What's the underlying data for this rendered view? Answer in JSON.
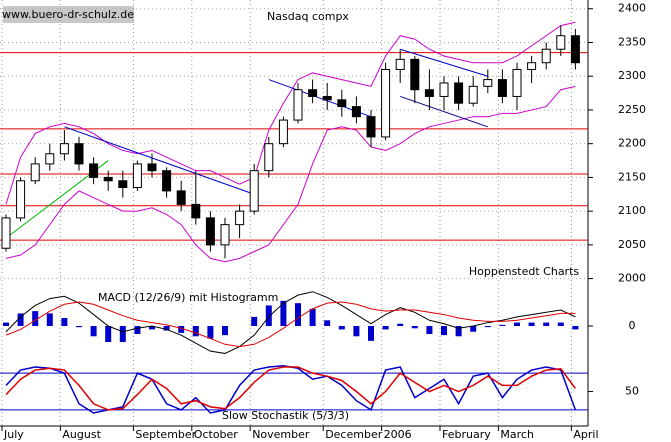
{
  "chart_data": [
    {
      "type": "candlestick",
      "title": "Nasdaq compx",
      "annotations": [
        "www.buero-dr-schulz.de",
        "Hoppenstedt Charts"
      ],
      "categories": [
        "July",
        null,
        null,
        null,
        "August",
        null,
        null,
        null,
        null,
        "September",
        null,
        null,
        null,
        "October",
        null,
        null,
        null,
        "November",
        null,
        null,
        null,
        null,
        "December",
        null,
        null,
        null,
        "2006",
        null,
        null,
        null,
        "February",
        null,
        null,
        null,
        "March",
        null,
        null,
        null,
        null,
        "April"
      ],
      "open": [
        2045,
        2090,
        2145,
        2170,
        2185,
        2200,
        2170,
        2150,
        2145,
        2135,
        2170,
        2160,
        2130,
        2110,
        2090,
        2050,
        2080,
        2100,
        2160,
        2200,
        2235,
        2280,
        2270,
        2265,
        2255,
        2240,
        2210,
        2310,
        2325,
        2280,
        2270,
        2290,
        2260,
        2285,
        2295,
        2270,
        2310,
        2320,
        2340,
        2360
      ],
      "high": [
        2095,
        2150,
        2180,
        2200,
        2220,
        2210,
        2180,
        2160,
        2160,
        2175,
        2185,
        2165,
        2145,
        2160,
        2100,
        2090,
        2110,
        2170,
        2210,
        2240,
        2290,
        2295,
        2290,
        2280,
        2270,
        2250,
        2320,
        2340,
        2330,
        2310,
        2300,
        2300,
        2300,
        2310,
        2310,
        2320,
        2330,
        2350,
        2375,
        2370
      ],
      "low": [
        2040,
        2085,
        2140,
        2160,
        2175,
        2160,
        2140,
        2130,
        2120,
        2130,
        2150,
        2120,
        2100,
        2080,
        2040,
        2030,
        2060,
        2095,
        2150,
        2195,
        2230,
        2260,
        2250,
        2240,
        2230,
        2195,
        2205,
        2290,
        2260,
        2250,
        2250,
        2250,
        2255,
        2275,
        2260,
        2250,
        2290,
        2310,
        2330,
        2310
      ],
      "close": [
        2090,
        2145,
        2170,
        2185,
        2200,
        2170,
        2150,
        2145,
        2135,
        2170,
        2160,
        2130,
        2110,
        2090,
        2050,
        2080,
        2100,
        2160,
        2200,
        2235,
        2280,
        2270,
        2265,
        2255,
        2240,
        2210,
        2310,
        2325,
        2280,
        2270,
        2290,
        2260,
        2285,
        2295,
        2270,
        2310,
        2320,
        2340,
        2360,
        2320
      ],
      "up_color": "#ffffff",
      "down_color": "#000000",
      "bollinger_upper": [
        2110,
        2180,
        2215,
        2225,
        2230,
        2225,
        2215,
        2200,
        2190,
        2185,
        2190,
        2180,
        2170,
        2160,
        2160,
        2150,
        2140,
        2150,
        2220,
        2260,
        2295,
        2305,
        2300,
        2295,
        2290,
        2285,
        2330,
        2360,
        2355,
        2340,
        2330,
        2325,
        2320,
        2320,
        2320,
        2330,
        2345,
        2360,
        2375,
        2380
      ],
      "bollinger_lower": [
        2030,
        2035,
        2050,
        2080,
        2110,
        2130,
        2120,
        2110,
        2100,
        2100,
        2105,
        2095,
        2080,
        2050,
        2030,
        2025,
        2030,
        2040,
        2050,
        2080,
        2110,
        2170,
        2220,
        2225,
        2220,
        2195,
        2190,
        2200,
        2215,
        2225,
        2230,
        2235,
        2240,
        2240,
        2245,
        2245,
        2250,
        2255,
        2280,
        2285
      ],
      "band_color": "#cc00cc",
      "levels": [
        2335,
        2222,
        2155,
        2108,
        2057
      ],
      "level_color": "#e00000",
      "trendlines": [
        {
          "color": "#00bb00",
          "x": [
            0,
            7
          ],
          "values": [
            2060,
            2175
          ]
        },
        {
          "color": "#0000cc",
          "x": [
            4,
            17
          ],
          "values": [
            2225,
            2125
          ]
        },
        {
          "color": "#0000cc",
          "x": [
            18,
            25
          ],
          "values": [
            2295,
            2240
          ]
        },
        {
          "color": "#0000cc",
          "x": [
            27,
            33
          ],
          "values": [
            2340,
            2300
          ]
        },
        {
          "color": "#000080",
          "x": [
            27,
            33
          ],
          "values": [
            2270,
            2225
          ]
        }
      ],
      "ylim": [
        1992,
        2410
      ],
      "yticks": [
        2000,
        2050,
        2100,
        2150,
        2200,
        2250,
        2300,
        2350,
        2400
      ],
      "grid": true
    },
    {
      "type": "macd",
      "title": "MACD (12/26/9) mit Histogramm",
      "macd": [
        -5,
        8,
        18,
        24,
        26,
        20,
        10,
        0,
        -5,
        -2,
        0,
        -3,
        -8,
        -15,
        -22,
        -24,
        -18,
        -8,
        8,
        20,
        27,
        30,
        25,
        18,
        10,
        2,
        10,
        16,
        12,
        5,
        2,
        -2,
        0,
        3,
        5,
        8,
        10,
        12,
        14,
        8
      ],
      "signal": [
        -8,
        -3,
        5,
        13,
        19,
        21,
        19,
        14,
        9,
        5,
        3,
        1,
        -2,
        -6,
        -11,
        -16,
        -18,
        -16,
        -10,
        -2,
        7,
        15,
        20,
        21,
        19,
        15,
        13,
        14,
        14,
        12,
        10,
        7,
        5,
        4,
        4,
        5,
        7,
        9,
        11,
        11
      ],
      "histogram": [
        3,
        11,
        13,
        11,
        7,
        -1,
        -9,
        -14,
        -14,
        -7,
        -3,
        -4,
        -6,
        -9,
        -11,
        -8,
        0,
        8,
        18,
        22,
        20,
        15,
        5,
        -3,
        -9,
        -13,
        -3,
        2,
        -2,
        -7,
        -8,
        -9,
        -5,
        -1,
        1,
        3,
        3,
        3,
        3,
        -3
      ],
      "macd_color": "#000000",
      "signal_color": "#e00000",
      "histogram_color": "#0000cc",
      "ylim": [
        -35,
        35
      ],
      "yticks": [
        0
      ]
    },
    {
      "type": "stochastic",
      "title": "Slow Stochastik (5/3/3)",
      "k": [
        60,
        85,
        90,
        88,
        80,
        30,
        15,
        20,
        25,
        80,
        70,
        30,
        20,
        40,
        15,
        20,
        60,
        85,
        90,
        92,
        88,
        70,
        75,
        60,
        35,
        20,
        85,
        90,
        40,
        55,
        70,
        30,
        75,
        80,
        40,
        70,
        85,
        90,
        85,
        20
      ],
      "d": [
        45,
        70,
        85,
        88,
        85,
        60,
        30,
        20,
        22,
        45,
        70,
        55,
        30,
        35,
        25,
        22,
        40,
        65,
        85,
        90,
        90,
        80,
        75,
        68,
        50,
        30,
        50,
        80,
        65,
        50,
        60,
        50,
        60,
        75,
        60,
        60,
        75,
        85,
        87,
        55
      ],
      "k_color": "#0000cc",
      "d_color": "#e00000",
      "levels": [
        80,
        20
      ],
      "level_color": "#0000cc",
      "ylim": [
        -3,
        90
      ],
      "yticks": [
        50
      ]
    }
  ]
}
